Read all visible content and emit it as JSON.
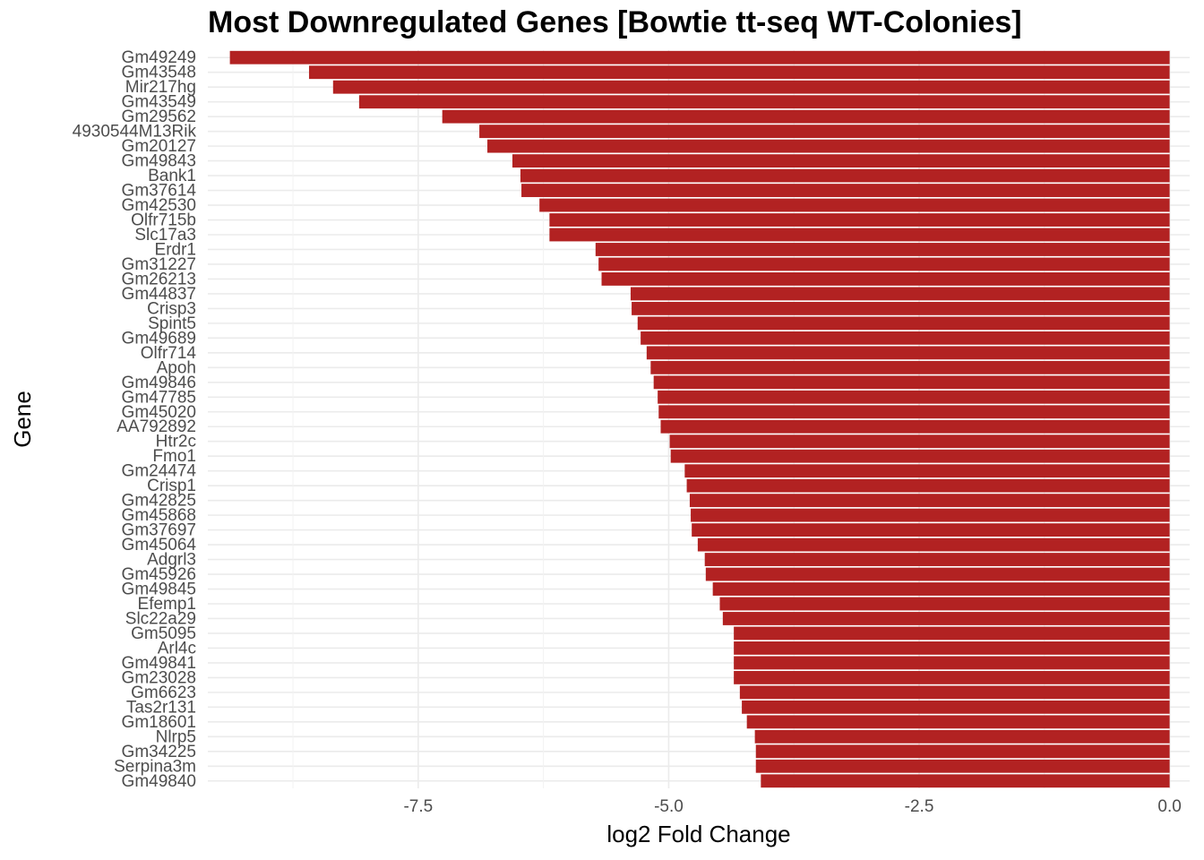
{
  "chart_data": {
    "type": "bar",
    "orientation": "horizontal",
    "title": "Most Downregulated Genes [Bowtie tt-seq WT-Colonies]",
    "xlabel": "log2 Fold Change",
    "ylabel": "Gene",
    "xlim": [
      -9.6,
      0.2
    ],
    "xticks": [
      -7.5,
      -5.0,
      -2.5,
      0.0
    ],
    "xtick_labels": [
      "-7.5",
      "-5.0",
      "-2.5",
      "0.0"
    ],
    "grid": true,
    "bar_color": "#b22222",
    "categories": [
      "Gm49249",
      "Gm43548",
      "Mir217hg",
      "Gm43549",
      "Gm29562",
      "4930544M13Rik",
      "Gm20127",
      "Gm49843",
      "Bank1",
      "Gm37614",
      "Gm42530",
      "Olfr715b",
      "Slc17a3",
      "Erdr1",
      "Gm31227",
      "Gm26213",
      "Gm44837",
      "Crisp3",
      "Spint5",
      "Gm49689",
      "Olfr714",
      "Apoh",
      "Gm49846",
      "Gm47785",
      "Gm45020",
      "AA792892",
      "Htr2c",
      "Fmo1",
      "Gm24474",
      "Crisp1",
      "Gm42825",
      "Gm45868",
      "Gm37697",
      "Gm45064",
      "Adgrl3",
      "Gm45926",
      "Gm49845",
      "Efemp1",
      "Slc22a29",
      "Gm5095",
      "Arl4c",
      "Gm49841",
      "Gm23028",
      "Gm6623",
      "Tas2r131",
      "Gm18601",
      "Nlrp5",
      "Gm34225",
      "Serpina3m",
      "Gm49840"
    ],
    "values": [
      -9.38,
      -8.59,
      -8.35,
      -8.09,
      -7.26,
      -6.89,
      -6.81,
      -6.56,
      -6.48,
      -6.47,
      -6.29,
      -6.19,
      -6.19,
      -5.73,
      -5.7,
      -5.67,
      -5.38,
      -5.37,
      -5.31,
      -5.28,
      -5.22,
      -5.18,
      -5.15,
      -5.11,
      -5.1,
      -5.08,
      -4.99,
      -4.98,
      -4.84,
      -4.82,
      -4.79,
      -4.78,
      -4.77,
      -4.71,
      -4.64,
      -4.63,
      -4.56,
      -4.49,
      -4.46,
      -4.35,
      -4.35,
      -4.35,
      -4.35,
      -4.29,
      -4.27,
      -4.22,
      -4.14,
      -4.13,
      -4.13,
      -4.08
    ]
  }
}
